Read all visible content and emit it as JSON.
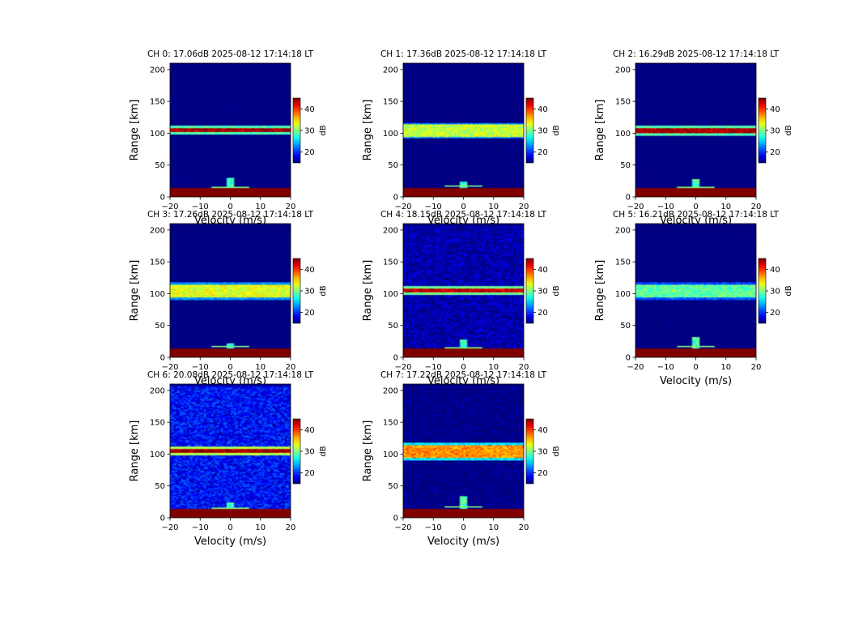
{
  "chart_data": {
    "type": "heatmap",
    "common": {
      "xlabel": "Velocity (m/s)",
      "ylabel": "Range [km]",
      "xlim": [
        -20,
        20
      ],
      "ylim": [
        0,
        210
      ],
      "xticks": [
        -20,
        -10,
        0,
        10,
        20
      ],
      "yticks": [
        0,
        50,
        100,
        150,
        200
      ],
      "colorbar": {
        "label": "dB",
        "range": [
          15,
          45
        ],
        "ticks": [
          20,
          30,
          40
        ],
        "colormap": "jet"
      },
      "grid": false
    },
    "panels": [
      {
        "title": "CH 0: 17.06dB 2025-08-12 17:14:18 LT",
        "layer": {
          "center": 105,
          "width": 7,
          "level": 44
        },
        "background": 13,
        "ground": {
          "top": 14,
          "level": 46
        },
        "spike_top": 30
      },
      {
        "title": "CH 1: 17.36dB 2025-08-12 17:14:18 LT",
        "layer": {
          "center": 104,
          "width": 20,
          "level": 32
        },
        "background": 13,
        "ground": {
          "top": 15,
          "level": 46
        },
        "spike_top": 25
      },
      {
        "title": "CH 2: 16.29dB 2025-08-12 17:14:18 LT",
        "layer": {
          "center": 104,
          "width": 9,
          "level": 44
        },
        "background": 13,
        "ground": {
          "top": 14,
          "level": 46
        },
        "spike_top": 28
      },
      {
        "title": "CH 3: 17.26dB 2025-08-12 17:14:18 LT",
        "layer": {
          "center": 104,
          "width": 22,
          "level": 33
        },
        "background": 13,
        "ground": {
          "top": 15,
          "level": 46
        },
        "spike_top": 22
      },
      {
        "title": "CH 4: 18.15dB 2025-08-12 17:14:18 LT",
        "layer": {
          "center": 105,
          "width": 8,
          "level": 43
        },
        "background": 16,
        "ground": {
          "top": 14,
          "level": 46
        },
        "spike_top": 28
      },
      {
        "title": "CH 5: 16.21dB 2025-08-12 17:14:18 LT",
        "layer": {
          "center": 104,
          "width": 22,
          "level": 29
        },
        "background": 13,
        "ground": {
          "top": 15,
          "level": 46
        },
        "spike_top": 32
      },
      {
        "title": "CH 6: 20.08dB 2025-08-12 17:14:18 LT",
        "layer": {
          "center": 105,
          "width": 7,
          "level": 44
        },
        "background": 19,
        "ground": {
          "top": 14,
          "level": 46
        },
        "spike_top": 25
      },
      {
        "title": "CH 7: 17.22dB 2025-08-12 17:14:18 LT",
        "layer": {
          "center": 104,
          "width": 22,
          "level": 37
        },
        "background": 14,
        "ground": {
          "top": 15,
          "level": 46
        },
        "spike_top": 35
      }
    ]
  }
}
